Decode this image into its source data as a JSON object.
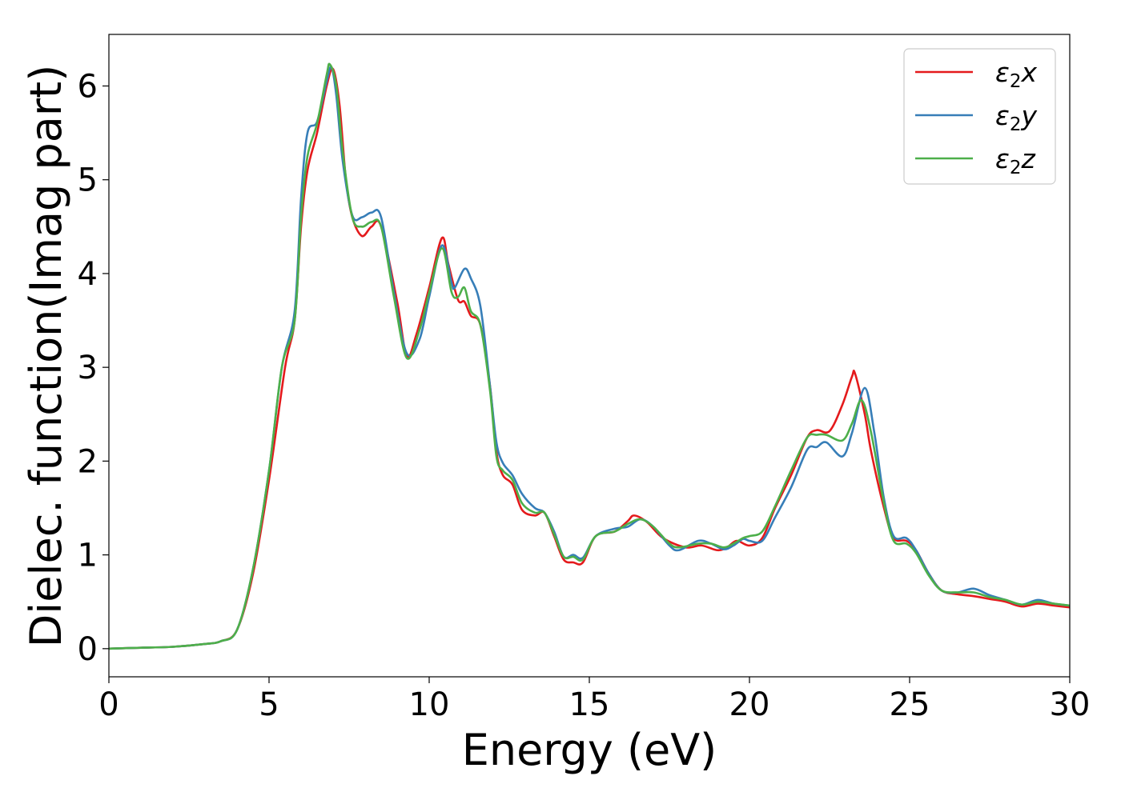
{
  "chart_data": {
    "type": "line",
    "xlabel": "Energy (eV)",
    "ylabel": "Dielec. function(Imag part)",
    "xlim": [
      0,
      30
    ],
    "ylim": [
      -0.3,
      6.55
    ],
    "xticks": [
      0,
      5,
      10,
      15,
      20,
      25,
      30
    ],
    "yticks": [
      0,
      1,
      2,
      3,
      4,
      5,
      6
    ],
    "grid": false,
    "legend_position": "top-right",
    "series": [
      {
        "name": "ε2x",
        "legend_base": "ε",
        "legend_sub": "2",
        "legend_suffix": "x",
        "color": "#e41a1c",
        "points": [
          [
            0,
            0.0
          ],
          [
            1,
            0.01
          ],
          [
            2,
            0.02
          ],
          [
            3,
            0.05
          ],
          [
            3.5,
            0.08
          ],
          [
            4,
            0.2
          ],
          [
            4.5,
            0.8
          ],
          [
            5,
            1.8
          ],
          [
            5.5,
            3.0
          ],
          [
            5.8,
            3.5
          ],
          [
            6.0,
            4.5
          ],
          [
            6.2,
            5.1
          ],
          [
            6.5,
            5.5
          ],
          [
            6.8,
            6.0
          ],
          [
            7.0,
            6.18
          ],
          [
            7.2,
            5.8
          ],
          [
            7.4,
            5.0
          ],
          [
            7.6,
            4.6
          ],
          [
            7.9,
            4.4
          ],
          [
            8.2,
            4.5
          ],
          [
            8.5,
            4.5
          ],
          [
            9.0,
            3.7
          ],
          [
            9.3,
            3.12
          ],
          [
            9.6,
            3.35
          ],
          [
            10.0,
            3.85
          ],
          [
            10.4,
            4.38
          ],
          [
            10.6,
            4.1
          ],
          [
            10.9,
            3.72
          ],
          [
            11.1,
            3.7
          ],
          [
            11.3,
            3.55
          ],
          [
            11.6,
            3.45
          ],
          [
            11.9,
            2.8
          ],
          [
            12.1,
            2.1
          ],
          [
            12.3,
            1.85
          ],
          [
            12.6,
            1.75
          ],
          [
            12.9,
            1.48
          ],
          [
            13.3,
            1.42
          ],
          [
            13.6,
            1.45
          ],
          [
            13.9,
            1.2
          ],
          [
            14.2,
            0.95
          ],
          [
            14.5,
            0.92
          ],
          [
            14.8,
            0.92
          ],
          [
            15.2,
            1.2
          ],
          [
            15.8,
            1.25
          ],
          [
            16.2,
            1.36
          ],
          [
            16.4,
            1.42
          ],
          [
            16.8,
            1.35
          ],
          [
            17.3,
            1.18
          ],
          [
            18.0,
            1.08
          ],
          [
            18.5,
            1.1
          ],
          [
            19.0,
            1.05
          ],
          [
            19.3,
            1.08
          ],
          [
            19.6,
            1.15
          ],
          [
            20.0,
            1.1
          ],
          [
            20.4,
            1.18
          ],
          [
            20.8,
            1.5
          ],
          [
            21.3,
            1.85
          ],
          [
            21.8,
            2.25
          ],
          [
            22.1,
            2.33
          ],
          [
            22.5,
            2.32
          ],
          [
            22.9,
            2.6
          ],
          [
            23.2,
            2.9
          ],
          [
            23.3,
            2.93
          ],
          [
            23.6,
            2.5
          ],
          [
            23.8,
            2.1
          ],
          [
            24.2,
            1.5
          ],
          [
            24.5,
            1.18
          ],
          [
            24.9,
            1.15
          ],
          [
            25.2,
            1.05
          ],
          [
            25.6,
            0.8
          ],
          [
            26.0,
            0.62
          ],
          [
            26.5,
            0.58
          ],
          [
            27.0,
            0.56
          ],
          [
            27.5,
            0.53
          ],
          [
            28.0,
            0.5
          ],
          [
            28.5,
            0.45
          ],
          [
            29.0,
            0.48
          ],
          [
            29.5,
            0.46
          ],
          [
            30.0,
            0.44
          ]
        ]
      },
      {
        "name": "ε2y",
        "legend_base": "ε",
        "legend_sub": "2",
        "legend_suffix": "y",
        "color": "#377eb8",
        "points": [
          [
            0,
            0.0
          ],
          [
            1,
            0.01
          ],
          [
            2,
            0.02
          ],
          [
            3,
            0.05
          ],
          [
            3.5,
            0.08
          ],
          [
            4,
            0.2
          ],
          [
            4.5,
            0.85
          ],
          [
            5,
            1.9
          ],
          [
            5.4,
            3.0
          ],
          [
            5.8,
            3.6
          ],
          [
            6.0,
            4.8
          ],
          [
            6.2,
            5.5
          ],
          [
            6.5,
            5.62
          ],
          [
            6.8,
            6.05
          ],
          [
            6.95,
            6.2
          ],
          [
            7.1,
            5.9
          ],
          [
            7.3,
            5.2
          ],
          [
            7.6,
            4.62
          ],
          [
            7.9,
            4.6
          ],
          [
            8.2,
            4.65
          ],
          [
            8.5,
            4.6
          ],
          [
            8.9,
            3.8
          ],
          [
            9.3,
            3.15
          ],
          [
            9.7,
            3.3
          ],
          [
            10.0,
            3.75
          ],
          [
            10.4,
            4.3
          ],
          [
            10.7,
            3.9
          ],
          [
            10.8,
            3.85
          ],
          [
            11.1,
            4.05
          ],
          [
            11.3,
            3.95
          ],
          [
            11.6,
            3.65
          ],
          [
            11.9,
            2.8
          ],
          [
            12.1,
            2.2
          ],
          [
            12.3,
            1.98
          ],
          [
            12.6,
            1.85
          ],
          [
            12.9,
            1.65
          ],
          [
            13.3,
            1.5
          ],
          [
            13.6,
            1.45
          ],
          [
            13.9,
            1.25
          ],
          [
            14.2,
            0.98
          ],
          [
            14.5,
            1.0
          ],
          [
            14.8,
            0.97
          ],
          [
            15.2,
            1.2
          ],
          [
            15.8,
            1.28
          ],
          [
            16.2,
            1.3
          ],
          [
            16.6,
            1.38
          ],
          [
            17.0,
            1.3
          ],
          [
            17.5,
            1.1
          ],
          [
            17.8,
            1.05
          ],
          [
            18.4,
            1.15
          ],
          [
            18.8,
            1.12
          ],
          [
            19.2,
            1.06
          ],
          [
            19.5,
            1.1
          ],
          [
            19.8,
            1.17
          ],
          [
            20.0,
            1.15
          ],
          [
            20.4,
            1.15
          ],
          [
            20.8,
            1.4
          ],
          [
            21.3,
            1.72
          ],
          [
            21.8,
            2.12
          ],
          [
            22.1,
            2.15
          ],
          [
            22.4,
            2.2
          ],
          [
            22.9,
            2.05
          ],
          [
            23.2,
            2.3
          ],
          [
            23.6,
            2.78
          ],
          [
            23.9,
            2.3
          ],
          [
            24.2,
            1.6
          ],
          [
            24.5,
            1.2
          ],
          [
            24.9,
            1.18
          ],
          [
            25.2,
            1.05
          ],
          [
            25.6,
            0.8
          ],
          [
            26.0,
            0.62
          ],
          [
            26.5,
            0.6
          ],
          [
            27.0,
            0.64
          ],
          [
            27.5,
            0.57
          ],
          [
            28.0,
            0.52
          ],
          [
            28.5,
            0.47
          ],
          [
            29.0,
            0.52
          ],
          [
            29.5,
            0.48
          ],
          [
            30.0,
            0.46
          ]
        ]
      },
      {
        "name": "ε2z",
        "legend_base": "ε",
        "legend_sub": "2",
        "legend_suffix": "z",
        "color": "#4daf4a",
        "points": [
          [
            0,
            0.0
          ],
          [
            1,
            0.01
          ],
          [
            2,
            0.02
          ],
          [
            3,
            0.05
          ],
          [
            3.5,
            0.08
          ],
          [
            4,
            0.2
          ],
          [
            4.5,
            0.85
          ],
          [
            5,
            1.9
          ],
          [
            5.4,
            3.0
          ],
          [
            5.8,
            3.5
          ],
          [
            6.0,
            4.6
          ],
          [
            6.2,
            5.25
          ],
          [
            6.5,
            5.6
          ],
          [
            6.8,
            6.12
          ],
          [
            6.9,
            6.23
          ],
          [
            7.1,
            6.0
          ],
          [
            7.3,
            5.3
          ],
          [
            7.6,
            4.6
          ],
          [
            7.9,
            4.5
          ],
          [
            8.2,
            4.55
          ],
          [
            8.5,
            4.5
          ],
          [
            8.9,
            3.75
          ],
          [
            9.3,
            3.1
          ],
          [
            9.7,
            3.4
          ],
          [
            10.0,
            3.8
          ],
          [
            10.4,
            4.27
          ],
          [
            10.7,
            3.8
          ],
          [
            10.9,
            3.75
          ],
          [
            11.1,
            3.85
          ],
          [
            11.3,
            3.6
          ],
          [
            11.6,
            3.45
          ],
          [
            11.9,
            2.75
          ],
          [
            12.1,
            2.05
          ],
          [
            12.3,
            1.9
          ],
          [
            12.6,
            1.8
          ],
          [
            12.9,
            1.55
          ],
          [
            13.3,
            1.45
          ],
          [
            13.6,
            1.45
          ],
          [
            13.9,
            1.22
          ],
          [
            14.2,
            0.98
          ],
          [
            14.5,
            0.98
          ],
          [
            14.8,
            0.95
          ],
          [
            15.2,
            1.2
          ],
          [
            15.8,
            1.25
          ],
          [
            16.2,
            1.33
          ],
          [
            16.6,
            1.38
          ],
          [
            17.0,
            1.3
          ],
          [
            17.5,
            1.12
          ],
          [
            17.8,
            1.08
          ],
          [
            18.4,
            1.12
          ],
          [
            18.8,
            1.12
          ],
          [
            19.2,
            1.08
          ],
          [
            19.5,
            1.12
          ],
          [
            19.8,
            1.18
          ],
          [
            20.0,
            1.2
          ],
          [
            20.4,
            1.25
          ],
          [
            20.8,
            1.52
          ],
          [
            21.3,
            1.9
          ],
          [
            21.8,
            2.25
          ],
          [
            22.1,
            2.28
          ],
          [
            22.4,
            2.28
          ],
          [
            22.9,
            2.22
          ],
          [
            23.2,
            2.4
          ],
          [
            23.5,
            2.65
          ],
          [
            23.8,
            2.3
          ],
          [
            24.2,
            1.55
          ],
          [
            24.5,
            1.15
          ],
          [
            24.9,
            1.12
          ],
          [
            25.2,
            1.02
          ],
          [
            25.6,
            0.78
          ],
          [
            26.0,
            0.62
          ],
          [
            26.5,
            0.6
          ],
          [
            27.0,
            0.6
          ],
          [
            27.5,
            0.55
          ],
          [
            28.0,
            0.52
          ],
          [
            28.5,
            0.47
          ],
          [
            29.0,
            0.5
          ],
          [
            29.5,
            0.48
          ],
          [
            30.0,
            0.46
          ]
        ]
      }
    ]
  }
}
